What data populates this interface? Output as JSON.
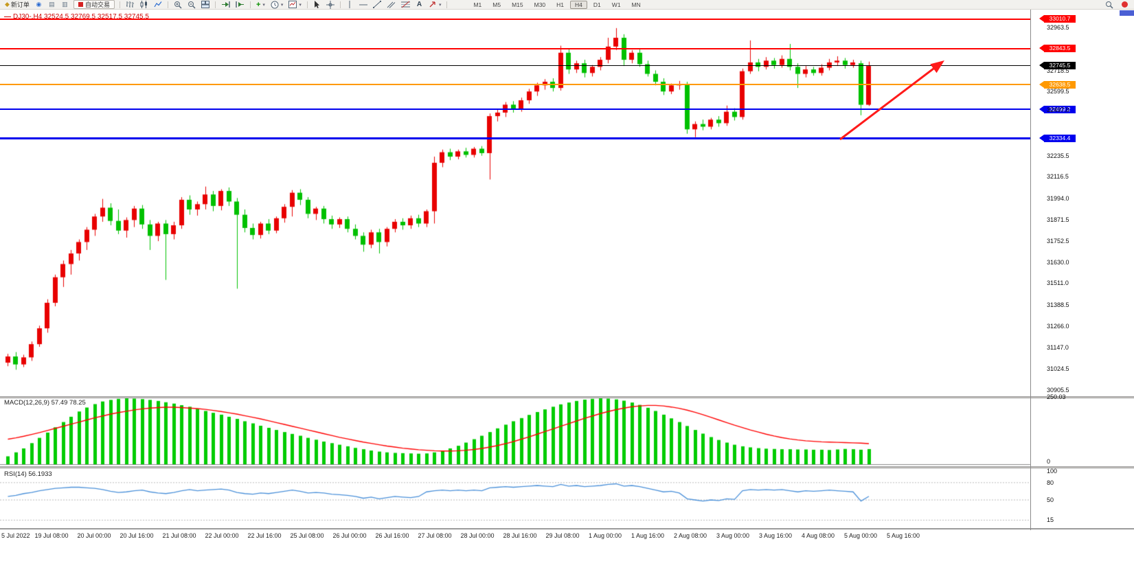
{
  "toolbar": {
    "new_order_label": "新订单",
    "autotrade_label": "自动交易",
    "timeframes": [
      "M1",
      "M5",
      "M15",
      "M30",
      "H1",
      "H4",
      "D1",
      "W1",
      "MN"
    ],
    "active_timeframe": "H4"
  },
  "chart": {
    "title": "DJ30-,H4 32524.5 32769.5 32517.5 32745.5",
    "symbol": "DJ30-",
    "period": "H4",
    "ohlc": {
      "open": "32524.5",
      "high": "32769.5",
      "low": "32517.5",
      "close": "32745.5"
    },
    "up_color": "#e80000",
    "down_color": "#00c000",
    "price_lines": [
      {
        "label": "33010.7",
        "price": 33010.7,
        "color": "#ff0000",
        "width": 2
      },
      {
        "label": "32843.5",
        "price": 32843.5,
        "color": "#ff0000",
        "width": 2
      },
      {
        "label": "32745.5",
        "price": 32745.5,
        "color": "#000000",
        "width": 1
      },
      {
        "label": "32638.5",
        "price": 32638.5,
        "color": "#ff9900",
        "width": 2
      },
      {
        "label": "32499.2",
        "price": 32499.2,
        "color": "#0000ee",
        "width": 2
      },
      {
        "label": "32334.4",
        "price": 32334.4,
        "color": "#0000ee",
        "width": 3
      }
    ],
    "axis_ticks": [
      "32963.5",
      "32718.5",
      "32599.5",
      "32497.0",
      "32235.5",
      "32116.5",
      "31994.0",
      "31871.5",
      "31752.5",
      "31630.0",
      "31511.0",
      "31388.5",
      "31266.0",
      "31147.0",
      "31024.5",
      "30905.5"
    ],
    "candles": [
      [
        31060,
        31110,
        31040,
        31095
      ],
      [
        31095,
        31120,
        31020,
        31050
      ],
      [
        31050,
        31105,
        31035,
        31090
      ],
      [
        31090,
        31180,
        31070,
        31165
      ],
      [
        31165,
        31270,
        31150,
        31255
      ],
      [
        31255,
        31420,
        31230,
        31400
      ],
      [
        31400,
        31560,
        31380,
        31545
      ],
      [
        31545,
        31640,
        31490,
        31620
      ],
      [
        31620,
        31700,
        31560,
        31680
      ],
      [
        31680,
        31760,
        31640,
        31745
      ],
      [
        31745,
        31830,
        31700,
        31815
      ],
      [
        31815,
        31905,
        31780,
        31890
      ],
      [
        31890,
        31990,
        31860,
        31940
      ],
      [
        31940,
        31965,
        31840,
        31865
      ],
      [
        31865,
        31930,
        31790,
        31810
      ],
      [
        31810,
        31885,
        31770,
        31870
      ],
      [
        31870,
        31950,
        31830,
        31935
      ],
      [
        31935,
        31955,
        31820,
        31845
      ],
      [
        31845,
        31870,
        31700,
        31780
      ],
      [
        31780,
        31860,
        31750,
        31850
      ],
      [
        31850,
        31870,
        31530,
        31790
      ],
      [
        31790,
        31860,
        31760,
        31840
      ],
      [
        31840,
        32000,
        31820,
        31985
      ],
      [
        31985,
        32010,
        31900,
        31930
      ],
      [
        31930,
        31975,
        31895,
        31960
      ],
      [
        31960,
        32060,
        31930,
        32015
      ],
      [
        32015,
        32035,
        31920,
        31950
      ],
      [
        31950,
        32045,
        31925,
        32035
      ],
      [
        32035,
        32055,
        31950,
        31975
      ],
      [
        31975,
        31995,
        31480,
        31900
      ],
      [
        31900,
        31930,
        31800,
        31825
      ],
      [
        31825,
        31850,
        31760,
        31785
      ],
      [
        31785,
        31860,
        31765,
        31850
      ],
      [
        31850,
        31875,
        31790,
        31810
      ],
      [
        31810,
        31890,
        31795,
        31880
      ],
      [
        31880,
        31960,
        31855,
        31945
      ],
      [
        31945,
        32040,
        31890,
        32025
      ],
      [
        32025,
        32045,
        31955,
        31985
      ],
      [
        31985,
        32000,
        31880,
        31905
      ],
      [
        31905,
        31945,
        31870,
        31935
      ],
      [
        31935,
        31950,
        31850,
        31875
      ],
      [
        31875,
        31895,
        31820,
        31845
      ],
      [
        31845,
        31885,
        31825,
        31875
      ],
      [
        31875,
        31890,
        31800,
        31820
      ],
      [
        31820,
        31845,
        31760,
        31780
      ],
      [
        31780,
        31800,
        31690,
        31730
      ],
      [
        31730,
        31815,
        31710,
        31800
      ],
      [
        31800,
        31820,
        31680,
        31745
      ],
      [
        31745,
        31830,
        31720,
        31820
      ],
      [
        31820,
        31875,
        31800,
        31860
      ],
      [
        31860,
        31880,
        31815,
        31840
      ],
      [
        31840,
        31895,
        31820,
        31880
      ],
      [
        31880,
        31900,
        31830,
        31850
      ],
      [
        31850,
        31930,
        31830,
        31920
      ],
      [
        31920,
        32230,
        31850,
        32195
      ],
      [
        32195,
        32270,
        32170,
        32255
      ],
      [
        32255,
        32275,
        32210,
        32230
      ],
      [
        32230,
        32270,
        32215,
        32260
      ],
      [
        32260,
        32280,
        32225,
        32240
      ],
      [
        32240,
        32285,
        32225,
        32275
      ],
      [
        32275,
        32290,
        32235,
        32250
      ],
      [
        32250,
        32475,
        32100,
        32460
      ],
      [
        32460,
        32500,
        32430,
        32480
      ],
      [
        32480,
        32540,
        32455,
        32525
      ],
      [
        32525,
        32545,
        32480,
        32500
      ],
      [
        32500,
        32565,
        32485,
        32550
      ],
      [
        32550,
        32615,
        32530,
        32600
      ],
      [
        32600,
        32650,
        32575,
        32635
      ],
      [
        32635,
        32670,
        32610,
        32655
      ],
      [
        32655,
        32675,
        32600,
        32620
      ],
      [
        32620,
        32860,
        32605,
        32820
      ],
      [
        32820,
        32840,
        32700,
        32725
      ],
      [
        32725,
        32775,
        32705,
        32760
      ],
      [
        32760,
        32780,
        32680,
        32705
      ],
      [
        32705,
        32750,
        32685,
        32740
      ],
      [
        32740,
        32795,
        32720,
        32780
      ],
      [
        32780,
        32905,
        32760,
        32855
      ],
      [
        32855,
        32960,
        32835,
        32905
      ],
      [
        32905,
        32925,
        32745,
        32780
      ],
      [
        32780,
        32835,
        32760,
        32820
      ],
      [
        32820,
        32840,
        32740,
        32755
      ],
      [
        32755,
        32775,
        32685,
        32700
      ],
      [
        32700,
        32720,
        32635,
        32655
      ],
      [
        32655,
        32675,
        32580,
        32600
      ],
      [
        32600,
        32645,
        32585,
        32635
      ],
      [
        32635,
        32660,
        32610,
        32640
      ],
      [
        32640,
        32655,
        32360,
        32385
      ],
      [
        32385,
        32430,
        32340,
        32415
      ],
      [
        32415,
        32440,
        32380,
        32400
      ],
      [
        32400,
        32450,
        32385,
        32440
      ],
      [
        32440,
        32460,
        32400,
        32420
      ],
      [
        32420,
        32520,
        32405,
        32485
      ],
      [
        32485,
        32505,
        32435,
        32455
      ],
      [
        32455,
        32730,
        32440,
        32715
      ],
      [
        32715,
        32890,
        32700,
        32765
      ],
      [
        32765,
        32785,
        32715,
        32740
      ],
      [
        32740,
        32795,
        32725,
        32775
      ],
      [
        32775,
        32790,
        32730,
        32750
      ],
      [
        32750,
        32805,
        32735,
        32785
      ],
      [
        32785,
        32870,
        32720,
        32740
      ],
      [
        32740,
        32760,
        32620,
        32700
      ],
      [
        32700,
        32745,
        32680,
        32725
      ],
      [
        32725,
        32740,
        32690,
        32705
      ],
      [
        32705,
        32755,
        32690,
        32735
      ],
      [
        32735,
        32785,
        32720,
        32765
      ],
      [
        32765,
        32800,
        32745,
        32775
      ],
      [
        32775,
        32790,
        32730,
        32750
      ],
      [
        32750,
        32780,
        32735,
        32765
      ],
      [
        32760,
        32775,
        32465,
        32524.5
      ],
      [
        32524.5,
        32769.5,
        32517.5,
        32745.5
      ]
    ]
  },
  "macd": {
    "label": "MACD(12,26,9) 57.49 78.25",
    "axis_max": "250.03",
    "axis_min": "0",
    "scale_max": 250.03,
    "bar_color": "#00cc00",
    "signal_color": "#ff0000",
    "histogram": [
      30,
      45,
      60,
      80,
      100,
      120,
      140,
      160,
      180,
      200,
      215,
      228,
      238,
      244,
      248,
      250,
      249,
      247,
      244,
      240,
      235,
      230,
      224,
      218,
      210,
      202,
      195,
      188,
      180,
      172,
      163,
      155,
      146,
      138,
      130,
      122,
      115,
      108,
      100,
      93,
      86,
      80,
      74,
      68,
      62,
      57,
      52,
      48,
      45,
      43,
      42,
      41,
      40,
      41,
      45,
      52,
      60,
      70,
      82,
      95,
      108,
      122,
      136,
      150,
      163,
      175,
      187,
      198,
      208,
      218,
      227,
      234,
      240,
      245,
      248,
      250,
      249,
      246,
      241,
      234,
      225,
      214,
      202,
      188,
      174,
      160,
      145,
      130,
      116,
      103,
      92,
      82,
      74,
      68,
      64,
      61,
      59,
      58,
      57,
      57,
      56,
      56,
      55,
      55,
      54,
      56,
      58,
      57,
      55,
      57.49
    ],
    "signal": [
      95,
      100,
      106,
      113,
      120,
      128,
      136,
      144,
      152,
      160,
      168,
      176,
      183,
      190,
      196,
      201,
      206,
      210,
      213,
      215,
      216,
      216,
      215,
      213,
      211,
      208,
      204,
      200,
      195,
      190,
      184,
      178,
      172,
      165,
      158,
      151,
      144,
      137,
      130,
      123,
      116,
      109,
      102,
      96,
      90,
      84,
      79,
      74,
      69,
      65,
      61,
      58,
      55,
      53,
      51,
      50,
      50,
      51,
      53,
      56,
      60,
      65,
      71,
      78,
      86,
      95,
      104,
      114,
      124,
      134,
      144,
      154,
      164,
      174,
      183,
      192,
      200,
      207,
      213,
      218,
      221,
      223,
      223,
      221,
      217,
      212,
      205,
      197,
      188,
      178,
      168,
      158,
      148,
      139,
      130,
      122,
      114,
      107,
      101,
      96,
      92,
      89,
      87,
      85,
      84,
      83,
      82,
      81,
      80,
      78.25
    ]
  },
  "rsi": {
    "label": "RSI(14) 56.1933",
    "line_color": "#4a90d9",
    "levels": [
      "100",
      "80",
      "50",
      "15"
    ],
    "values": [
      56,
      58,
      61,
      63,
      66,
      68,
      70,
      71,
      72,
      72,
      71,
      70,
      68,
      65,
      63,
      64,
      66,
      67,
      64,
      62,
      61,
      63,
      66,
      68,
      66,
      67,
      68,
      69,
      67,
      63,
      61,
      60,
      62,
      61,
      63,
      65,
      67,
      65,
      62,
      63,
      62,
      60,
      59,
      58,
      56,
      53,
      55,
      52,
      54,
      56,
      55,
      54,
      56,
      64,
      66,
      67,
      66,
      67,
      66,
      67,
      66,
      71,
      72,
      73,
      72,
      73,
      74,
      75,
      74,
      73,
      77,
      74,
      75,
      73,
      74,
      75,
      77,
      78,
      74,
      75,
      73,
      70,
      67,
      64,
      65,
      62,
      52,
      50,
      48,
      50,
      49,
      52,
      51,
      66,
      68,
      67,
      68,
      67,
      68,
      66,
      64,
      66,
      65,
      66,
      67,
      66,
      65,
      64,
      48,
      56.19
    ]
  },
  "time_axis": {
    "labels": [
      "5 Jul 2022",
      "19 Jul 08:00",
      "20 Jul 00:00",
      "20 Jul 16:00",
      "21 Jul 08:00",
      "22 Jul 00:00",
      "22 Jul 16:00",
      "25 Jul 08:00",
      "26 Jul 00:00",
      "26 Jul 16:00",
      "27 Jul 08:00",
      "28 Jul 00:00",
      "28 Jul 16:00",
      "29 Jul 08:00",
      "1 Aug 00:00",
      "1 Aug 16:00",
      "2 Aug 08:00",
      "3 Aug 00:00",
      "3 Aug 16:00",
      "4 Aug 08:00",
      "5 Aug 00:00",
      "5 Aug 16:00"
    ]
  },
  "annotation": {
    "shape": "up-trend-arrow",
    "color": "#ff1a1a"
  }
}
